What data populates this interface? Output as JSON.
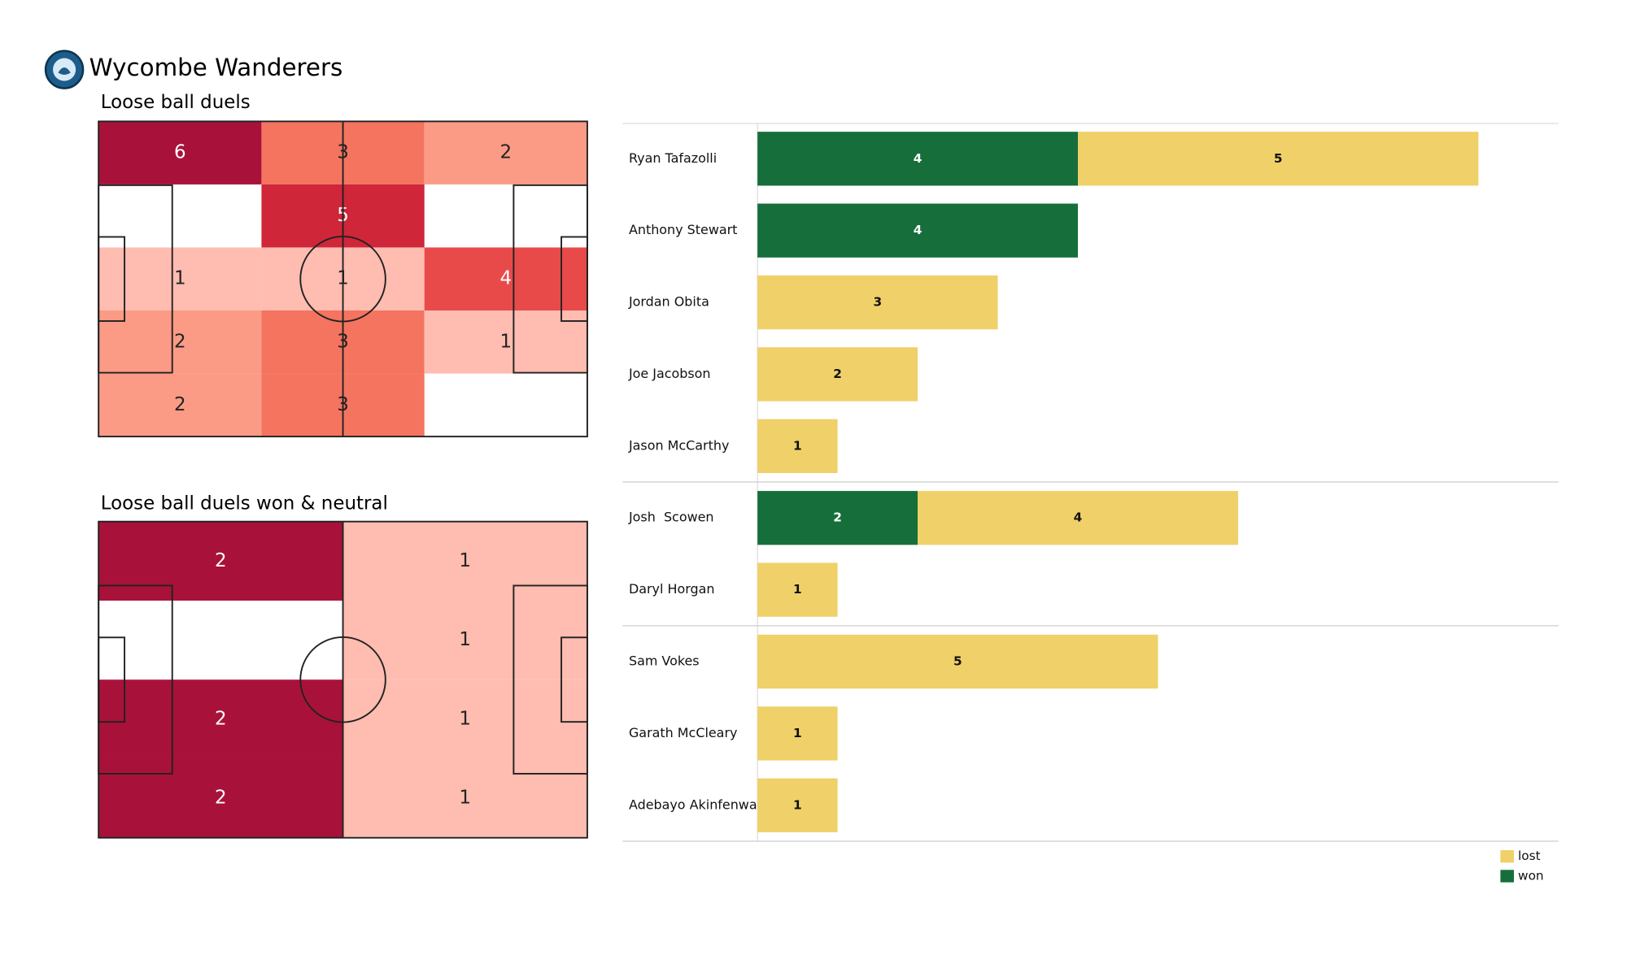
{
  "title": "Wycombe Wanderers",
  "chart_data": [
    {
      "type": "heatmap",
      "title": "Loose ball duels",
      "values": [
        [
          6,
          3,
          2
        ],
        [
          null,
          5,
          null
        ],
        [
          1,
          1,
          4
        ],
        [
          2,
          3,
          1
        ],
        [
          2,
          3,
          null
        ]
      ]
    },
    {
      "type": "heatmap",
      "title": "Loose ball duels won & neutral",
      "values": [
        [
          2,
          1
        ],
        [
          null,
          1
        ],
        [
          2,
          1
        ],
        [
          2,
          1
        ]
      ]
    },
    {
      "type": "stacked-barh",
      "categories": [
        "Ryan Tafazolli",
        "Anthony Stewart",
        "Jordan Obita",
        "Joe Jacobson",
        "Jason McCarthy",
        "Josh  Scowen",
        "Daryl Horgan",
        "Sam Vokes",
        "Garath McCleary",
        "Adebayo Akinfenwa"
      ],
      "group_sizes": [
        5,
        2,
        3
      ],
      "series": [
        {
          "name": "won",
          "color": "#166f3a",
          "values": [
            4,
            4,
            null,
            null,
            null,
            2,
            null,
            null,
            null,
            null
          ]
        },
        {
          "name": "lost",
          "color": "#f0d068",
          "values": [
            5,
            null,
            3,
            2,
            1,
            4,
            1,
            5,
            1,
            1
          ]
        }
      ],
      "xlim": [
        0,
        10
      ],
      "legend": "lower right"
    }
  ]
}
